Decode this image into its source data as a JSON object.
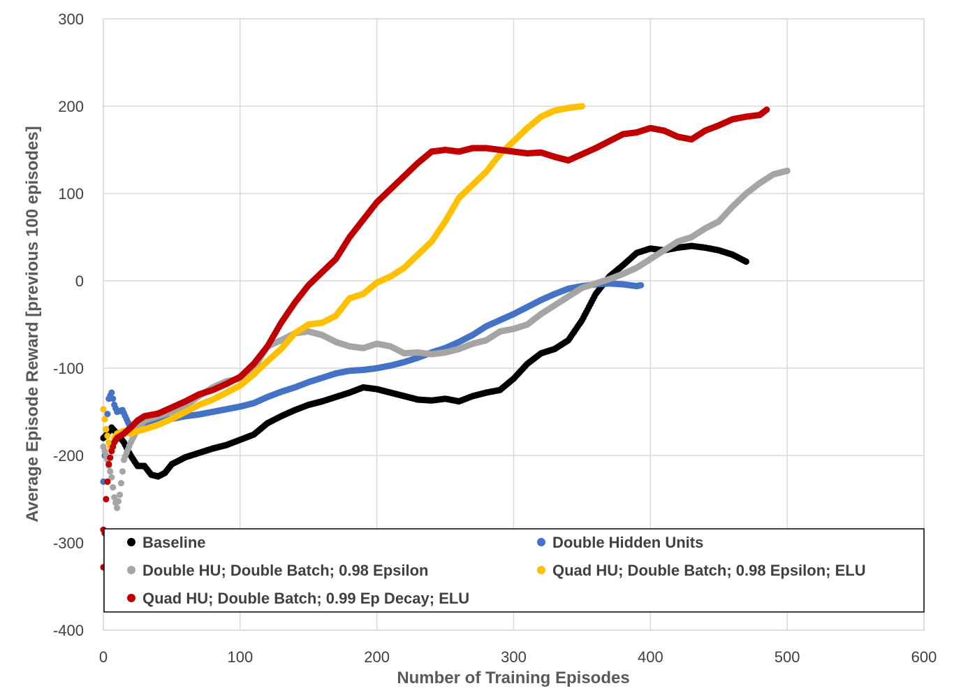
{
  "chart_data": {
    "type": "scatter",
    "title": "",
    "xlabel": "Number of Training Episodes",
    "ylabel": "Average Episode Reward [previous 100 episodes]",
    "xlim": [
      0,
      600
    ],
    "ylim": [
      -400,
      300
    ],
    "xticks": [
      0,
      100,
      200,
      300,
      400,
      500,
      600
    ],
    "yticks": [
      -400,
      -300,
      -200,
      -100,
      0,
      100,
      200,
      300
    ],
    "grid": true,
    "legend_position": "bottom, inside plot",
    "series": [
      {
        "name": "Baseline",
        "color": "#000000",
        "points": [
          [
            0,
            -180
          ],
          [
            3,
            -175
          ],
          [
            6,
            -168
          ],
          [
            10,
            -175
          ],
          [
            15,
            -185
          ],
          [
            20,
            -200
          ],
          [
            25,
            -212
          ],
          [
            30,
            -212
          ],
          [
            35,
            -222
          ],
          [
            40,
            -224
          ],
          [
            45,
            -220
          ],
          [
            50,
            -210
          ],
          [
            60,
            -202
          ],
          [
            70,
            -197
          ],
          [
            80,
            -192
          ],
          [
            90,
            -188
          ],
          [
            100,
            -182
          ],
          [
            110,
            -176
          ],
          [
            120,
            -163
          ],
          [
            130,
            -155
          ],
          [
            140,
            -148
          ],
          [
            150,
            -142
          ],
          [
            160,
            -138
          ],
          [
            170,
            -133
          ],
          [
            180,
            -128
          ],
          [
            190,
            -122
          ],
          [
            200,
            -124
          ],
          [
            210,
            -128
          ],
          [
            220,
            -132
          ],
          [
            230,
            -136
          ],
          [
            240,
            -137
          ],
          [
            250,
            -135
          ],
          [
            260,
            -138
          ],
          [
            270,
            -132
          ],
          [
            280,
            -128
          ],
          [
            290,
            -125
          ],
          [
            300,
            -112
          ],
          [
            310,
            -95
          ],
          [
            320,
            -83
          ],
          [
            330,
            -78
          ],
          [
            340,
            -68
          ],
          [
            350,
            -45
          ],
          [
            360,
            -15
          ],
          [
            370,
            5
          ],
          [
            380,
            18
          ],
          [
            390,
            32
          ],
          [
            400,
            37
          ],
          [
            410,
            35
          ],
          [
            420,
            38
          ],
          [
            430,
            40
          ],
          [
            440,
            38
          ],
          [
            450,
            35
          ],
          [
            460,
            30
          ],
          [
            470,
            22
          ]
        ]
      },
      {
        "name": "Double Hidden Units",
        "color": "#4472c4",
        "points": [
          [
            0,
            -230
          ],
          [
            2,
            -170
          ],
          [
            4,
            -135
          ],
          [
            6,
            -128
          ],
          [
            8,
            -142
          ],
          [
            10,
            -150
          ],
          [
            14,
            -148
          ],
          [
            18,
            -162
          ],
          [
            22,
            -175
          ],
          [
            30,
            -165
          ],
          [
            40,
            -160
          ],
          [
            50,
            -158
          ],
          [
            60,
            -155
          ],
          [
            70,
            -153
          ],
          [
            80,
            -150
          ],
          [
            90,
            -147
          ],
          [
            100,
            -144
          ],
          [
            110,
            -140
          ],
          [
            120,
            -133
          ],
          [
            130,
            -127
          ],
          [
            140,
            -122
          ],
          [
            150,
            -116
          ],
          [
            160,
            -111
          ],
          [
            170,
            -106
          ],
          [
            180,
            -103
          ],
          [
            190,
            -102
          ],
          [
            200,
            -100
          ],
          [
            210,
            -97
          ],
          [
            220,
            -93
          ],
          [
            230,
            -88
          ],
          [
            240,
            -82
          ],
          [
            250,
            -77
          ],
          [
            260,
            -70
          ],
          [
            270,
            -62
          ],
          [
            280,
            -52
          ],
          [
            290,
            -45
          ],
          [
            300,
            -38
          ],
          [
            310,
            -30
          ],
          [
            320,
            -22
          ],
          [
            330,
            -15
          ],
          [
            340,
            -9
          ],
          [
            350,
            -6
          ],
          [
            360,
            -4
          ],
          [
            370,
            -3
          ],
          [
            380,
            -4
          ],
          [
            390,
            -6
          ],
          [
            393,
            -5
          ]
        ]
      },
      {
        "name": "Double HU; Double Batch; 0.98 Epsilon",
        "color": "#a5a5a5",
        "points": [
          [
            0,
            -190
          ],
          [
            3,
            -205
          ],
          [
            6,
            -225
          ],
          [
            8,
            -248
          ],
          [
            10,
            -260
          ],
          [
            12,
            -245
          ],
          [
            15,
            -205
          ],
          [
            20,
            -185
          ],
          [
            25,
            -170
          ],
          [
            30,
            -160
          ],
          [
            40,
            -155
          ],
          [
            50,
            -150
          ],
          [
            60,
            -143
          ],
          [
            70,
            -132
          ],
          [
            80,
            -122
          ],
          [
            90,
            -115
          ],
          [
            100,
            -112
          ],
          [
            110,
            -100
          ],
          [
            120,
            -75
          ],
          [
            130,
            -68
          ],
          [
            140,
            -60
          ],
          [
            150,
            -58
          ],
          [
            160,
            -62
          ],
          [
            170,
            -70
          ],
          [
            180,
            -75
          ],
          [
            190,
            -77
          ],
          [
            200,
            -72
          ],
          [
            210,
            -75
          ],
          [
            220,
            -83
          ],
          [
            230,
            -82
          ],
          [
            240,
            -84
          ],
          [
            250,
            -82
          ],
          [
            260,
            -78
          ],
          [
            270,
            -72
          ],
          [
            280,
            -68
          ],
          [
            290,
            -58
          ],
          [
            300,
            -55
          ],
          [
            310,
            -50
          ],
          [
            320,
            -38
          ],
          [
            330,
            -28
          ],
          [
            340,
            -18
          ],
          [
            350,
            -8
          ],
          [
            360,
            -3
          ],
          [
            370,
            2
          ],
          [
            380,
            8
          ],
          [
            390,
            15
          ],
          [
            400,
            25
          ],
          [
            410,
            35
          ],
          [
            420,
            45
          ],
          [
            430,
            50
          ],
          [
            440,
            60
          ],
          [
            450,
            68
          ],
          [
            460,
            85
          ],
          [
            470,
            100
          ],
          [
            480,
            112
          ],
          [
            490,
            122
          ],
          [
            500,
            126
          ]
        ]
      },
      {
        "name": "Quad HU; Double Batch; 0.98 Epsilon; ELU",
        "color": "#ffc000",
        "points": [
          [
            0,
            -147
          ],
          [
            2,
            -170
          ],
          [
            4,
            -185
          ],
          [
            6,
            -195
          ],
          [
            8,
            -180
          ],
          [
            10,
            -175
          ],
          [
            15,
            -172
          ],
          [
            20,
            -175
          ],
          [
            25,
            -172
          ],
          [
            30,
            -170
          ],
          [
            40,
            -165
          ],
          [
            50,
            -158
          ],
          [
            60,
            -150
          ],
          [
            70,
            -142
          ],
          [
            80,
            -136
          ],
          [
            90,
            -128
          ],
          [
            100,
            -120
          ],
          [
            110,
            -107
          ],
          [
            120,
            -92
          ],
          [
            130,
            -78
          ],
          [
            140,
            -60
          ],
          [
            150,
            -50
          ],
          [
            160,
            -48
          ],
          [
            170,
            -40
          ],
          [
            180,
            -20
          ],
          [
            190,
            -15
          ],
          [
            200,
            -2
          ],
          [
            210,
            5
          ],
          [
            220,
            15
          ],
          [
            230,
            30
          ],
          [
            240,
            45
          ],
          [
            250,
            68
          ],
          [
            260,
            95
          ],
          [
            270,
            110
          ],
          [
            280,
            125
          ],
          [
            290,
            145
          ],
          [
            300,
            160
          ],
          [
            310,
            175
          ],
          [
            320,
            188
          ],
          [
            330,
            195
          ],
          [
            340,
            198
          ],
          [
            350,
            200
          ]
        ]
      },
      {
        "name": "Quad HU; Double Batch; 0.99 Ep Decay; ELU",
        "color": "#c00000",
        "points": [
          [
            0,
            -285
          ],
          [
            0,
            -328
          ],
          [
            2,
            -250
          ],
          [
            4,
            -210
          ],
          [
            6,
            -195
          ],
          [
            8,
            -185
          ],
          [
            10,
            -180
          ],
          [
            15,
            -175
          ],
          [
            20,
            -168
          ],
          [
            25,
            -160
          ],
          [
            30,
            -155
          ],
          [
            40,
            -152
          ],
          [
            50,
            -145
          ],
          [
            60,
            -138
          ],
          [
            70,
            -130
          ],
          [
            80,
            -125
          ],
          [
            90,
            -118
          ],
          [
            100,
            -110
          ],
          [
            110,
            -95
          ],
          [
            120,
            -75
          ],
          [
            130,
            -48
          ],
          [
            140,
            -25
          ],
          [
            150,
            -5
          ],
          [
            160,
            10
          ],
          [
            170,
            25
          ],
          [
            180,
            50
          ],
          [
            190,
            70
          ],
          [
            200,
            90
          ],
          [
            210,
            105
          ],
          [
            220,
            120
          ],
          [
            230,
            135
          ],
          [
            240,
            148
          ],
          [
            250,
            150
          ],
          [
            260,
            148
          ],
          [
            270,
            152
          ],
          [
            280,
            152
          ],
          [
            290,
            150
          ],
          [
            300,
            148
          ],
          [
            310,
            146
          ],
          [
            320,
            147
          ],
          [
            330,
            142
          ],
          [
            340,
            138
          ],
          [
            350,
            145
          ],
          [
            360,
            152
          ],
          [
            370,
            160
          ],
          [
            380,
            168
          ],
          [
            390,
            170
          ],
          [
            400,
            175
          ],
          [
            410,
            172
          ],
          [
            420,
            165
          ],
          [
            430,
            162
          ],
          [
            440,
            172
          ],
          [
            450,
            178
          ],
          [
            460,
            185
          ],
          [
            470,
            188
          ],
          [
            480,
            190
          ],
          [
            485,
            196
          ]
        ]
      }
    ]
  }
}
